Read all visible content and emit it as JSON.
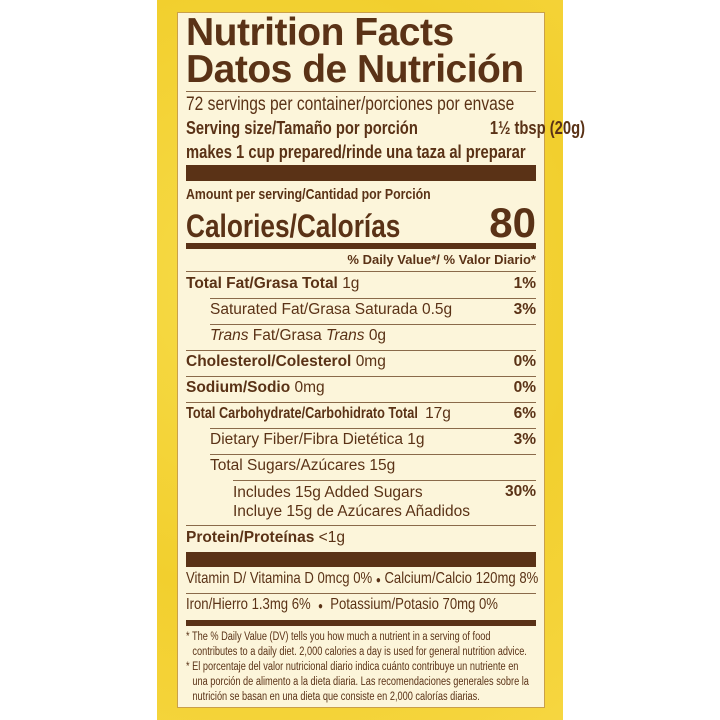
{
  "colors": {
    "brand_brown": "#5a3216",
    "panel": "#fcf5da",
    "background": "#f2cf2e"
  },
  "title_en": "Nutrition Facts",
  "title_es": "Datos de Nutrición",
  "servings": "72 servings per container/porciones por envase",
  "serving_size_label": "Serving size/Tamaño por porción",
  "serving_size_value": "1½ tbsp (20g)",
  "prepared": "makes 1 cup prepared/rinde una taza al preparar",
  "amount_per_serving": "Amount per serving/Cantidad por Porción",
  "calories_label": "Calories/Calorías",
  "calories_value": "80",
  "dv_header": "% Daily Value*/ % Valor Diario*",
  "nutrients": [
    {
      "name": "Total Fat/Grasa Total",
      "amount": "1g",
      "dv": "1%"
    },
    {
      "name": "Saturated Fat/Grasa Saturada",
      "amount": "0.5g",
      "dv": "3%"
    },
    {
      "name_pre": "Trans",
      "name_mid": " Fat/Grasa ",
      "name_post": "Trans",
      "amount": "0g"
    },
    {
      "name": "Cholesterol/Colesterol",
      "amount": "0mg",
      "dv": "0%"
    },
    {
      "name": "Sodium/Sodio",
      "amount": "0mg",
      "dv": "0%"
    },
    {
      "name": "Total Carbohydrate/Carbohidrato Total",
      "amount": "17g",
      "dv": "6%"
    },
    {
      "name": "Dietary Fiber/Fibra Dietética",
      "amount": "1g",
      "dv": "3%"
    },
    {
      "name": "Total Sugars/Azúcares",
      "amount": "15g"
    },
    {
      "line1": "Includes 15g Added Sugars",
      "line2": "Incluye 15g de Azúcares Añadidos",
      "dv": "30%"
    },
    {
      "name": "Protein/Proteínas",
      "amount": "<1g"
    }
  ],
  "vitamins_row1": {
    "a": "Vitamin D/ Vitamina D 0mcg 0%",
    "b": "Calcium/Calcio 120mg 8%"
  },
  "vitamins_row2": {
    "a": "Iron/Hierro 1.3mg 6%",
    "b": "Potassium/Potasio 70mg 0%"
  },
  "bullet": "●",
  "footnote_en_1": "* The % Daily Value (DV) tells you how much a nutrient in a serving of food",
  "footnote_en_2": "contributes to a daily diet. 2,000 calories a day is used for general nutrition advice.",
  "footnote_es_1": "* El porcentaje del valor nutricional diario indica cuánto contribuye un nutriente en",
  "footnote_es_2": "una porción de alimento a la dieta diaria. Las recomendaciones generales sobre la",
  "footnote_es_3": "nutrición se basan en una dieta que consiste en 2,000 calorías diarias."
}
